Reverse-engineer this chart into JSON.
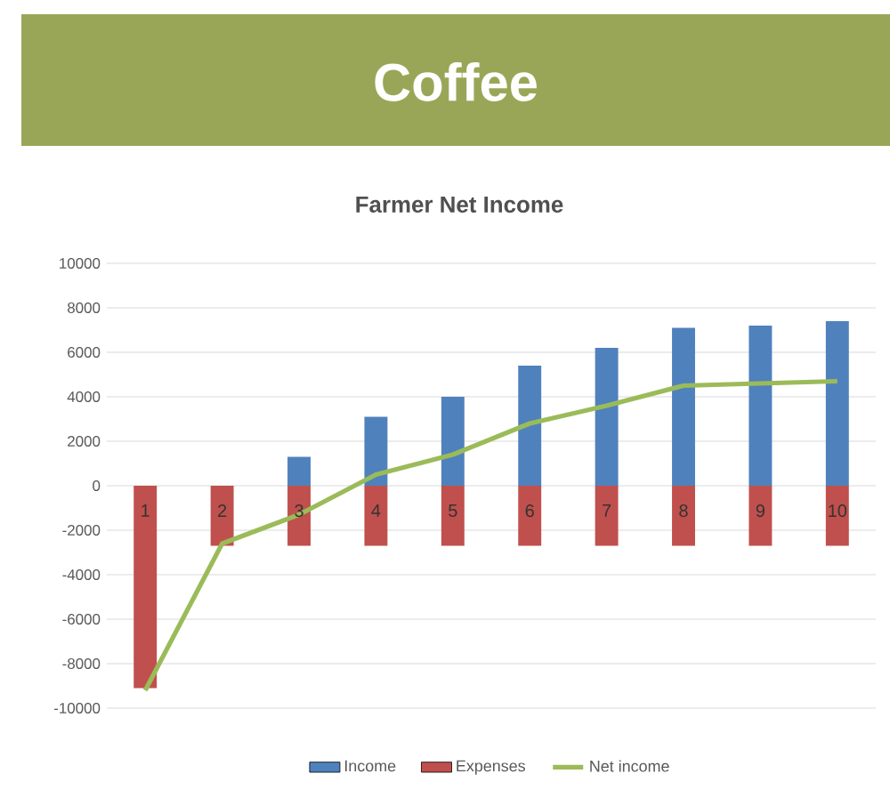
{
  "chart_data": {
    "type": "bar",
    "title": "Coffee",
    "subtitle": "Farmer Net Income",
    "categories": [
      "1",
      "2",
      "3",
      "4",
      "5",
      "6",
      "7",
      "8",
      "9",
      "10"
    ],
    "series": [
      {
        "name": "Income",
        "color": "#4f81bd",
        "values": [
          0,
          0,
          1300,
          3100,
          4000,
          5400,
          6200,
          7100,
          7200,
          7400
        ]
      },
      {
        "name": "Expenses",
        "color": "#c0504d",
        "values": [
          -9100,
          -2700,
          -2700,
          -2700,
          -2700,
          -2700,
          -2700,
          -2700,
          -2700,
          -2700
        ]
      },
      {
        "name": "Net income",
        "type": "line",
        "color": "#9bbb59",
        "values": [
          -9200,
          -2600,
          -1300,
          500,
          1400,
          2800,
          3600,
          4500,
          4600,
          4700
        ]
      }
    ],
    "ylim": [
      -10000,
      10000
    ],
    "yticks": [
      -10000,
      -8000,
      -6000,
      -4000,
      -2000,
      0,
      2000,
      4000,
      6000,
      8000,
      10000
    ],
    "grid": "y",
    "legend": "bottom",
    "stacked": true
  }
}
